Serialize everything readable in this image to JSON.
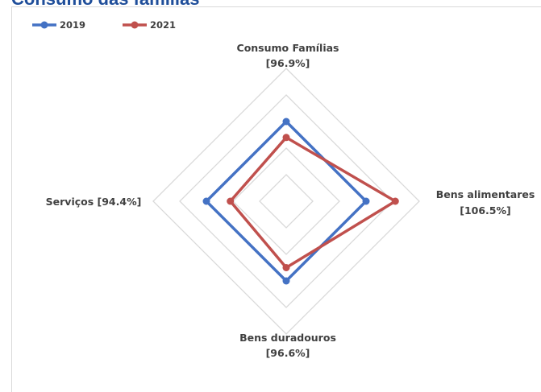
{
  "page": {
    "title": "Consumo das famílias"
  },
  "colors": {
    "series_2019": "#4472c4",
    "series_2021": "#c0504d",
    "grid": "#d9d9d9",
    "title": "#1f4e9a",
    "text": "#404040"
  },
  "chart_data": {
    "type": "radar",
    "title": "",
    "legend_position": "top-left",
    "grid": true,
    "scale": [
      0,
      5
    ],
    "rings": 5,
    "categories": [
      {
        "line1": "Consumo Famílias",
        "line2": "[96.9%]"
      },
      {
        "line1": "Bens alimentares",
        "line2": "[106.5%]"
      },
      {
        "line1": "Bens duradouros",
        "line2": "[96.6%]"
      },
      {
        "line1": "Serviços [94.4%]",
        "line2": ""
      }
    ],
    "series": [
      {
        "name": "2019",
        "values": [
          3,
          3,
          3,
          3
        ]
      },
      {
        "name": "2021",
        "values": [
          2.4,
          4.1,
          2.5,
          2.1
        ]
      }
    ]
  }
}
